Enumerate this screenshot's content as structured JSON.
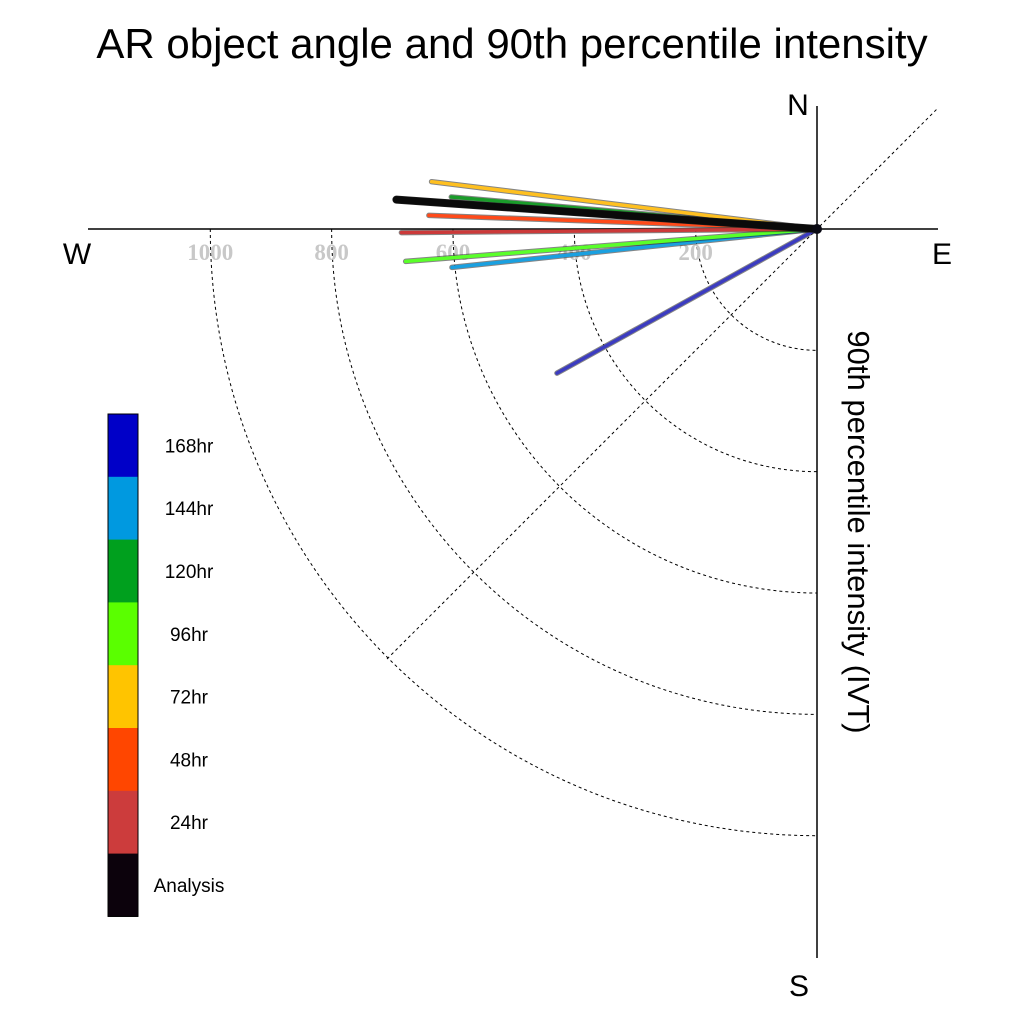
{
  "chart_data": {
    "type": "polar-vector",
    "title": "AR object angle and 90th percentile intensity",
    "ylabel": "90th percentile intensity (IVT)",
    "compass": {
      "north": "N",
      "south": "S",
      "east": "E",
      "west": "W"
    },
    "radial_ticks": [
      200,
      400,
      600,
      800,
      1000
    ],
    "radial_range": [
      0,
      1200
    ],
    "grid": true,
    "legend_position": "left",
    "series": [
      {
        "name": "168hr",
        "color": "#3c3cc0",
        "swatch": "#0000c8",
        "magnitude": 490,
        "angle_deg": 209
      },
      {
        "name": "144hr",
        "color": "#1aa0e0",
        "swatch": "#0099e0",
        "magnitude": 605,
        "angle_deg": 186
      },
      {
        "name": "120hr",
        "color": "#1a9c2a",
        "swatch": "#00a01e",
        "magnitude": 605,
        "angle_deg": 175
      },
      {
        "name": "96hr",
        "color": "#5aff2a",
        "swatch": "#5aff00",
        "magnitude": 680,
        "angle_deg": 184.5
      },
      {
        "name": "72hr",
        "color": "#ffc020",
        "swatch": "#ffc400",
        "magnitude": 640,
        "angle_deg": 173
      },
      {
        "name": "48hr",
        "color": "#ff4a1a",
        "swatch": "#ff4600",
        "magnitude": 640,
        "angle_deg": 178
      },
      {
        "name": "24hr",
        "color": "#cc3a3a",
        "swatch": "#cc3c3c",
        "magnitude": 685,
        "angle_deg": 180.5
      },
      {
        "name": "Analysis",
        "color": "#0a0a0a",
        "swatch": "#0c020c",
        "magnitude": 695,
        "angle_deg": 176
      }
    ]
  }
}
